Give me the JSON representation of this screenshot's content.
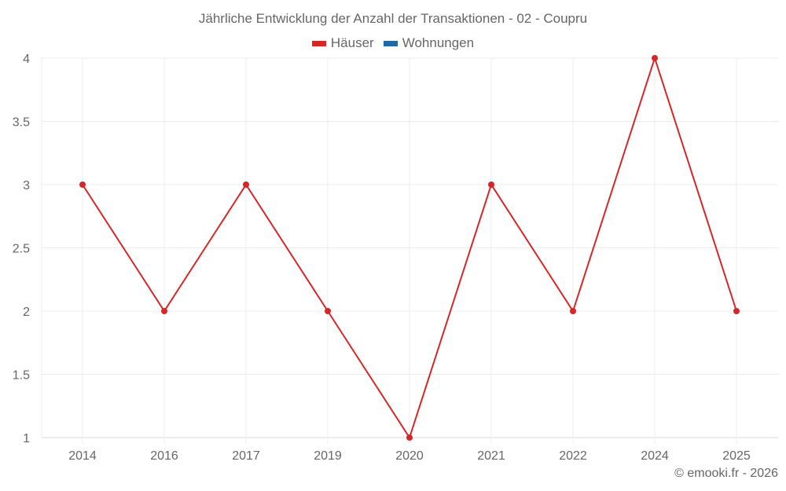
{
  "chart_data": {
    "type": "line",
    "title": "Jährliche Entwicklung der Anzahl der Transaktionen - 02 - Coupru",
    "categories": [
      "2014",
      "2016",
      "2017",
      "2019",
      "2020",
      "2021",
      "2022",
      "2024",
      "2025"
    ],
    "series": [
      {
        "name": "Häuser",
        "color": "#d62728",
        "values": [
          3,
          2,
          3,
          2,
          1,
          3,
          2,
          4,
          2
        ]
      },
      {
        "name": "Wohnungen",
        "color": "#1f6aa5",
        "values": []
      }
    ],
    "xlabel": "",
    "ylabel": "",
    "ylim": [
      1,
      4
    ],
    "yticks": [
      "1",
      "1.5",
      "2",
      "2.5",
      "3",
      "3.5",
      "4"
    ],
    "grid": true,
    "legend_position": "top"
  },
  "legend": {
    "items": [
      {
        "label": "Häuser",
        "color": "#d62728"
      },
      {
        "label": "Wohnungen",
        "color": "#1f6aa5"
      }
    ]
  },
  "credit": "© emooki.fr - 2026"
}
